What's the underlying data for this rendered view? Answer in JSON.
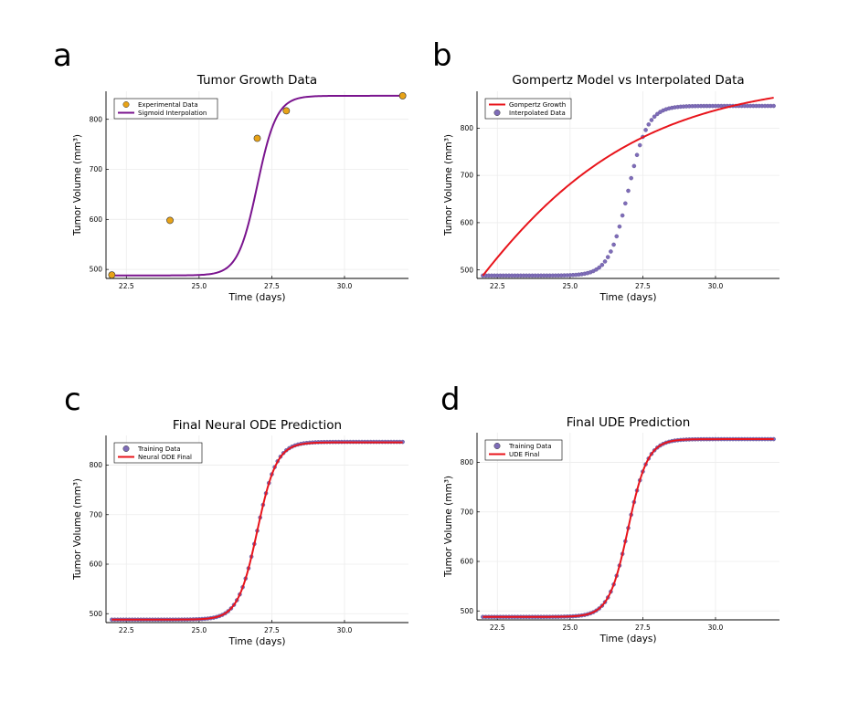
{
  "figure": {
    "panel_letters": [
      "a",
      "b",
      "c",
      "d"
    ]
  },
  "chart_data": [
    {
      "panel": "a",
      "type": "scatter",
      "title": "Tumor Growth Data",
      "xlabel": "Time (days)",
      "ylabel": "Tumor Volume (mm³)",
      "xlim": [
        21.8,
        32.2
      ],
      "ylim": [
        482,
        856
      ],
      "xticks": [
        22.5,
        25.0,
        27.5,
        30.0
      ],
      "yticks": [
        500,
        600,
        700,
        800
      ],
      "grid": true,
      "legend_position": "top-left",
      "series": [
        {
          "name": "Experimental Data",
          "kind": "points",
          "color": "#e8a317",
          "x": [
            22,
            24,
            27,
            28,
            32
          ],
          "y": [
            489,
            598,
            762,
            817,
            847
          ]
        },
        {
          "name": "Sigmoid Interpolation",
          "kind": "line",
          "color": "#7a148e",
          "model": "sigmoid",
          "x_range": [
            22,
            32
          ],
          "params": {
            "low": 488,
            "high": 847,
            "mid": 27.0,
            "k": 3.0
          }
        }
      ]
    },
    {
      "panel": "b",
      "type": "line",
      "title": "Gompertz Model vs Interpolated Data",
      "xlabel": "Time (days)",
      "ylabel": "Tumor Volume (mm³)",
      "xlim": [
        21.8,
        32.2
      ],
      "ylim": [
        482,
        878
      ],
      "xticks": [
        22.5,
        25.0,
        27.5,
        30.0
      ],
      "yticks": [
        500,
        600,
        700,
        800
      ],
      "grid": true,
      "legend_position": "top-left",
      "series": [
        {
          "name": "Gompertz Growth",
          "kind": "line",
          "color": "#e8141b",
          "model": "gompertz",
          "x_range": [
            22,
            32
          ],
          "params": {
            "start": 488,
            "asymptote": 905,
            "rate": 0.26
          }
        },
        {
          "name": "Interpolated Data",
          "kind": "points",
          "color": "#7e6cb8",
          "model": "sigmoid",
          "x_range": [
            22,
            32
          ],
          "n_points": 101,
          "params": {
            "low": 488,
            "high": 847,
            "mid": 27.0,
            "k": 3.0
          }
        }
      ]
    },
    {
      "panel": "c",
      "type": "line",
      "title": "Final Neural ODE Prediction",
      "xlabel": "Time (days)",
      "ylabel": "Tumor Volume (mm³)",
      "xlim": [
        21.8,
        32.2
      ],
      "ylim": [
        482,
        860
      ],
      "xticks": [
        22.5,
        25.0,
        27.5,
        30.0
      ],
      "yticks": [
        500,
        600,
        700,
        800
      ],
      "grid": true,
      "legend_position": "top-left",
      "series": [
        {
          "name": "Training Data",
          "kind": "points",
          "color": "#7e6cb8",
          "model": "sigmoid",
          "x_range": [
            22,
            32
          ],
          "n_points": 101,
          "params": {
            "low": 488,
            "high": 847,
            "mid": 27.0,
            "k": 3.0
          }
        },
        {
          "name": "Neural ODE Final",
          "kind": "line",
          "color": "#e8141b",
          "model": "sigmoid",
          "x_range": [
            22,
            32
          ],
          "params": {
            "low": 488,
            "high": 846,
            "mid": 27.0,
            "k": 3.0
          }
        }
      ]
    },
    {
      "panel": "d",
      "type": "line",
      "title": "Final UDE Prediction",
      "xlabel": "Time (days)",
      "ylabel": "Tumor Volume (mm³)",
      "xlim": [
        21.8,
        32.2
      ],
      "ylim": [
        482,
        860
      ],
      "xticks": [
        22.5,
        25.0,
        27.5,
        30.0
      ],
      "yticks": [
        500,
        600,
        700,
        800
      ],
      "grid": true,
      "legend_position": "top-left",
      "series": [
        {
          "name": "Training Data",
          "kind": "points",
          "color": "#7e6cb8",
          "model": "sigmoid",
          "x_range": [
            22,
            32
          ],
          "n_points": 101,
          "params": {
            "low": 488,
            "high": 847,
            "mid": 27.0,
            "k": 3.0
          }
        },
        {
          "name": "UDE Final",
          "kind": "line",
          "color": "#e8141b",
          "model": "sigmoid",
          "x_range": [
            22,
            32
          ],
          "params": {
            "low": 488,
            "high": 847,
            "mid": 27.0,
            "k": 3.0
          }
        }
      ]
    }
  ]
}
